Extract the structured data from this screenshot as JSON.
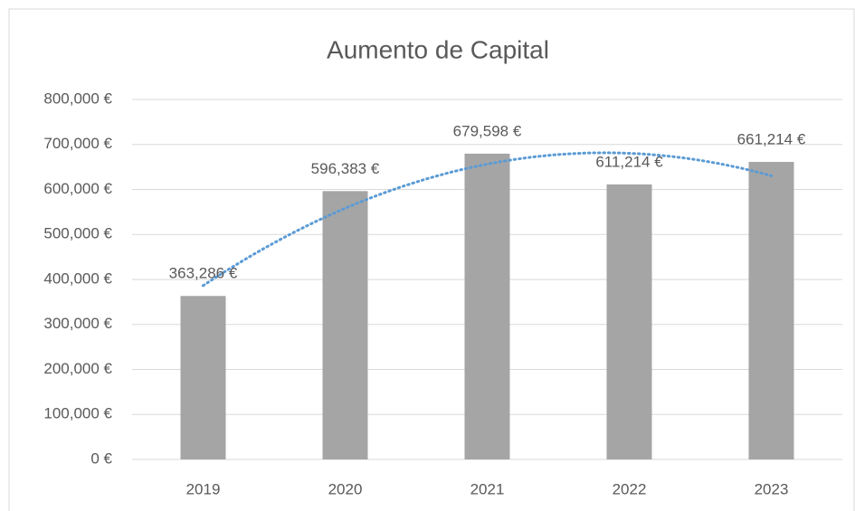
{
  "chart_data": {
    "type": "bar",
    "title": "Aumento de Capital",
    "categories": [
      "2019",
      "2020",
      "2021",
      "2022",
      "2023"
    ],
    "values": [
      363286,
      596383,
      679598,
      611214,
      661214
    ],
    "value_labels": [
      "363,286 €",
      "596,383 €",
      "679,598 €",
      "611,214 €",
      "661,214 €"
    ],
    "color": "#a5a5a5",
    "ylim": [
      0,
      800000
    ],
    "yticks": [
      {
        "value": 0,
        "label": "0 €"
      },
      {
        "value": 100000,
        "label": "100,000 €"
      },
      {
        "value": 200000,
        "label": "200,000 €"
      },
      {
        "value": 300000,
        "label": "300,000 €"
      },
      {
        "value": 400000,
        "label": "400,000 €"
      },
      {
        "value": 500000,
        "label": "500,000 €"
      },
      {
        "value": 600000,
        "label": "600,000 €"
      },
      {
        "value": 700000,
        "label": "700,000 €"
      },
      {
        "value": 800000,
        "label": "800,000 €"
      }
    ],
    "grid": true,
    "trendline": {
      "type": "polynomial",
      "order": 2,
      "color": "#5b9bd5"
    }
  }
}
